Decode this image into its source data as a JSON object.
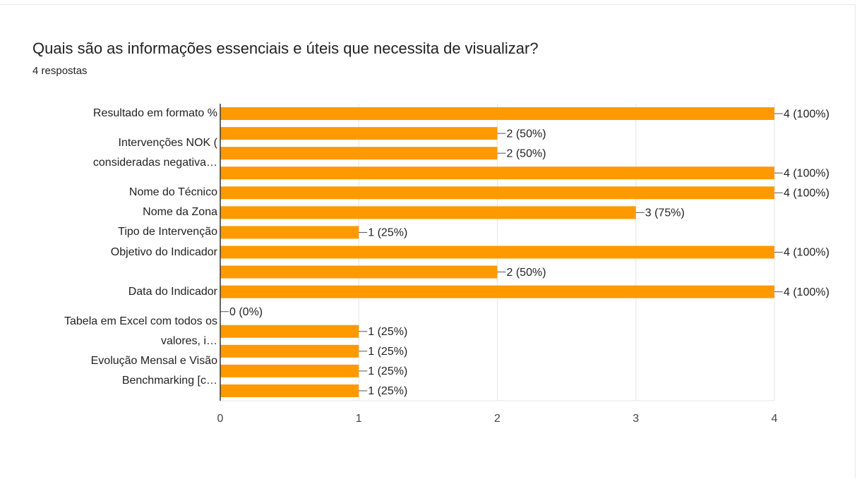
{
  "chart_data": {
    "type": "barh",
    "title": "Quais são as informações essenciais e úteis que necessita de visualizar?",
    "subtitle": "4 respostas",
    "categories": [
      "Resultado em formato %",
      null,
      "Intervenções NOK (\nconsideradas negativa…",
      null,
      "Nome do Técnico",
      "Nome da Zona",
      "Tipo de Intervenção",
      "Objetivo do Indicador",
      null,
      "Data do Indicador",
      null,
      "Tabela em Excel com todos os\nvalores, i…",
      null,
      "Evolução Mensal e Visão\nBenchmarking [c…",
      null
    ],
    "values": [
      4,
      2,
      2,
      4,
      4,
      3,
      1,
      4,
      2,
      4,
      0,
      1,
      1,
      1,
      1
    ],
    "value_labels": [
      "4 (100%)",
      "2 (50%)",
      "2 (50%)",
      "4 (100%)",
      "4 (100%)",
      "3 (75%)",
      "1 (25%)",
      "4 (100%)",
      "2 (50%)",
      "4 (100%)",
      "0 (0%)",
      "1 (25%)",
      "1 (25%)",
      "1 (25%)",
      "1 (25%)"
    ],
    "color": "#ff9900",
    "xlim": [
      0,
      4
    ],
    "xticks": [
      0,
      1,
      2,
      3,
      4
    ],
    "grid": true
  }
}
